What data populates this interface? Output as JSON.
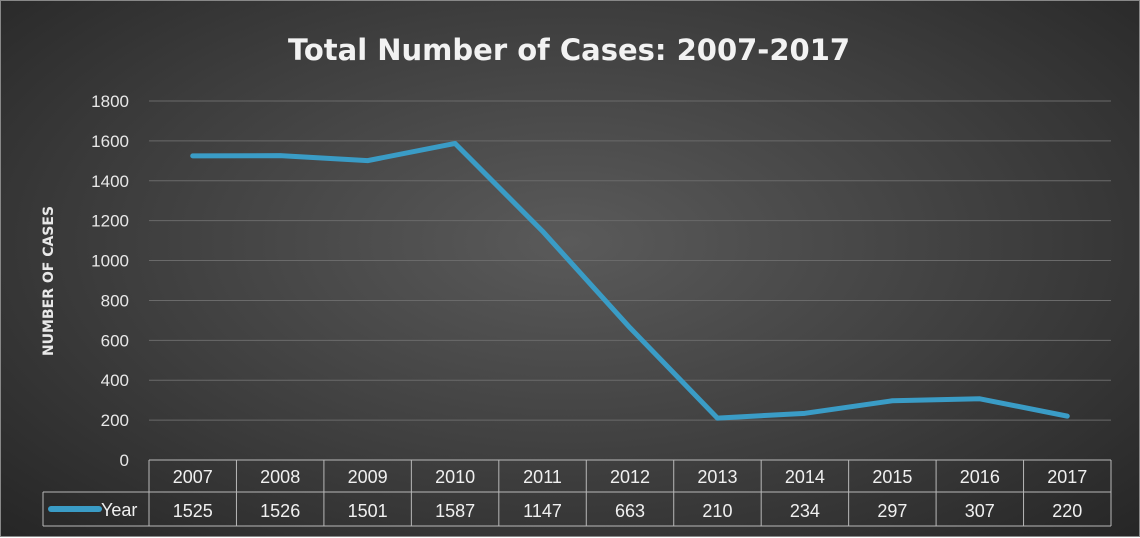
{
  "chart_data": {
    "type": "line",
    "title": "Total Number of Cases: 2007-2017",
    "xlabel": "",
    "ylabel": "NUMBER OF CASES",
    "categories": [
      "2007",
      "2008",
      "2009",
      "2010",
      "2011",
      "2012",
      "2013",
      "2014",
      "2015",
      "2016",
      "2017"
    ],
    "series": [
      {
        "name": "Year",
        "values": [
          1525,
          1526,
          1501,
          1587,
          1147,
          663,
          210,
          234,
          297,
          307,
          220
        ],
        "color": "#3a9cc6"
      }
    ],
    "ylim": [
      0,
      1800
    ],
    "yticks": [
      0,
      200,
      400,
      600,
      800,
      1000,
      1200,
      1400,
      1600,
      1800
    ],
    "grid": true,
    "legend": "data-table-bottom-left",
    "data_table": true
  }
}
